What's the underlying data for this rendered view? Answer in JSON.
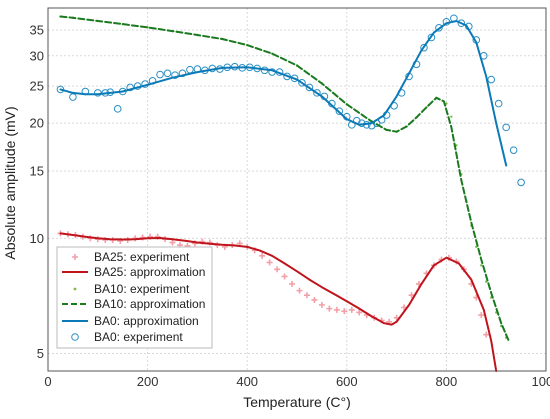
{
  "chart_data": {
    "type": "scatter",
    "title": "",
    "xlabel": "Temperature (C°)",
    "ylabel": "Absolute amplitude (mV)",
    "xlim": [
      0,
      1000
    ],
    "ylim": [
      4.5,
      40
    ],
    "yscale": "log",
    "grid": true,
    "legend_position": "bottom-left",
    "x_ticks": [
      0,
      200,
      400,
      600,
      800,
      1000
    ],
    "y_ticks": [
      5,
      10,
      15,
      20,
      25,
      30,
      35
    ],
    "x_tick_labels": [
      "0",
      "200",
      "400",
      "600",
      "800",
      "1000"
    ],
    "y_tick_labels": [
      "5",
      "10",
      "15",
      "20",
      "25",
      "30",
      "35"
    ],
    "legend": [
      "BA25: experiment",
      "BA25: approximation",
      "BA10: experiment",
      "BA10: approximation",
      "BA0: approximation",
      "BA0: experiment"
    ],
    "series": [
      {
        "name": "BA25: experiment",
        "style": "marker-plus",
        "color": "#f2a0a8",
        "x": [
          25,
          40,
          55,
          70,
          85,
          100,
          115,
          130,
          145,
          160,
          175,
          190,
          205,
          220,
          235,
          250,
          265,
          280,
          295,
          310,
          325,
          340,
          355,
          370,
          385,
          400,
          415,
          430,
          445,
          460,
          475,
          490,
          505,
          520,
          535,
          550,
          565,
          580,
          595,
          610,
          625,
          640,
          655,
          670,
          685,
          700,
          715,
          730,
          745,
          760,
          775,
          790,
          805,
          820,
          835,
          850,
          860,
          870,
          880
        ],
        "y": [
          10.3,
          10.25,
          10.2,
          10.1,
          10.0,
          9.95,
          9.9,
          9.9,
          9.85,
          9.9,
          10.0,
          10.05,
          10.1,
          10.1,
          9.95,
          9.75,
          9.6,
          9.55,
          9.7,
          9.8,
          9.75,
          9.6,
          9.5,
          9.6,
          9.7,
          9.5,
          9.3,
          9.0,
          8.65,
          8.3,
          7.95,
          7.6,
          7.3,
          7.1,
          6.9,
          6.7,
          6.55,
          6.5,
          6.45,
          6.5,
          6.4,
          6.3,
          6.2,
          6.1,
          6.05,
          6.2,
          6.6,
          7.1,
          7.6,
          8.1,
          8.5,
          8.8,
          8.9,
          8.7,
          8.3,
          7.6,
          7.0,
          6.3,
          5.6
        ]
      },
      {
        "name": "BA25: approximation",
        "style": "line",
        "color": "#c0141c",
        "x": [
          25,
          50,
          75,
          100,
          125,
          150,
          175,
          200,
          225,
          250,
          275,
          300,
          325,
          350,
          375,
          400,
          425,
          450,
          475,
          500,
          525,
          550,
          575,
          600,
          625,
          650,
          675,
          690,
          700,
          725,
          750,
          775,
          800,
          825,
          850,
          875,
          890,
          900
        ],
        "y": [
          10.3,
          10.2,
          10.1,
          10.0,
          9.95,
          9.93,
          9.95,
          10.0,
          10.02,
          9.95,
          9.85,
          9.75,
          9.68,
          9.62,
          9.58,
          9.5,
          9.3,
          9.0,
          8.6,
          8.2,
          7.8,
          7.45,
          7.15,
          6.85,
          6.55,
          6.25,
          6.0,
          5.95,
          6.05,
          6.7,
          7.6,
          8.5,
          8.9,
          8.6,
          7.8,
          6.5,
          5.4,
          4.5
        ]
      },
      {
        "name": "BA10: experiment",
        "style": "marker-dot",
        "color": "#7dbb45",
        "x": [
          25,
          50,
          100,
          150,
          200,
          250,
          300,
          350,
          400,
          450,
          500,
          550,
          600,
          650,
          680,
          700,
          720,
          740,
          760,
          780,
          800,
          810,
          820,
          830,
          840,
          850,
          860,
          870,
          880,
          890,
          900,
          910,
          920
        ],
        "y": [
          38,
          37.7,
          37,
          36.3,
          35.6,
          34.8,
          34,
          33.2,
          32,
          30.4,
          28.3,
          25.4,
          22.4,
          20.2,
          19.2,
          19.0,
          19.6,
          20.7,
          22,
          23.3,
          22.5,
          20.8,
          17.5,
          14.7,
          12.5,
          10.8,
          9.5,
          8.5,
          7.7,
          7.0,
          6.4,
          5.9,
          5.5
        ]
      },
      {
        "name": "BA10: approximation",
        "style": "dashed",
        "color": "#1a7a1f",
        "x": [
          25,
          50,
          100,
          150,
          200,
          250,
          300,
          350,
          400,
          450,
          500,
          550,
          600,
          650,
          680,
          700,
          720,
          740,
          760,
          780,
          795,
          810,
          830,
          850,
          870,
          890,
          910,
          925
        ],
        "y": [
          38,
          37.7,
          37,
          36.3,
          35.6,
          34.8,
          34,
          33.2,
          32,
          30.4,
          28.3,
          25.4,
          22.4,
          20.2,
          19.2,
          19.0,
          19.6,
          20.7,
          22,
          23.3,
          22.8,
          19.5,
          14.2,
          11.0,
          8.8,
          7.2,
          6.0,
          5.4
        ]
      },
      {
        "name": "BA0: approximation",
        "style": "line",
        "color": "#0a7ab8",
        "x": [
          25,
          50,
          75,
          100,
          150,
          200,
          250,
          300,
          350,
          400,
          450,
          500,
          550,
          600,
          625,
          650,
          675,
          700,
          725,
          750,
          775,
          800,
          820,
          840,
          860,
          880,
          900,
          920
        ],
        "y": [
          24.5,
          24.0,
          23.8,
          23.8,
          24.2,
          25.2,
          26.3,
          27.2,
          27.9,
          28.0,
          27.5,
          26.0,
          23.5,
          20.5,
          19.8,
          20.0,
          21.0,
          23.5,
          27.0,
          31.0,
          34.5,
          36.5,
          37.0,
          36.0,
          32.5,
          26.5,
          20.0,
          15.5
        ]
      },
      {
        "name": "BA0: experiment",
        "style": "marker-circle",
        "color": "#2b8fc4",
        "x": [
          25,
          50,
          75,
          100,
          115,
          125,
          140,
          150,
          165,
          180,
          195,
          210,
          225,
          240,
          255,
          270,
          285,
          300,
          315,
          330,
          345,
          360,
          375,
          390,
          405,
          420,
          435,
          450,
          465,
          480,
          495,
          510,
          525,
          540,
          555,
          570,
          585,
          600,
          610,
          620,
          630,
          640,
          650,
          660,
          670,
          680,
          695,
          710,
          725,
          740,
          755,
          770,
          785,
          800,
          815,
          830,
          845,
          860,
          875,
          890,
          905,
          920,
          935,
          950
        ],
        "y": [
          24.5,
          23.4,
          24.2,
          24.0,
          24.0,
          24.1,
          21.8,
          24.2,
          24.8,
          25.0,
          25.3,
          25.8,
          26.8,
          27.0,
          26.7,
          27.0,
          27.6,
          27.7,
          27.5,
          27.8,
          27.7,
          28.0,
          28.1,
          27.9,
          28.0,
          27.8,
          27.5,
          27.2,
          27.2,
          26.5,
          26.2,
          25.5,
          24.8,
          24.0,
          23.5,
          22.5,
          21.5,
          20.8,
          19.8,
          20.3,
          20.0,
          19.8,
          19.7,
          20.0,
          20.4,
          21.0,
          22.2,
          24.0,
          26.5,
          28.5,
          31.5,
          33.5,
          35.5,
          36.8,
          37.6,
          36.5,
          35.8,
          33.0,
          30.0,
          26.0,
          22.5,
          19.5,
          17.0,
          14.0
        ]
      }
    ]
  }
}
